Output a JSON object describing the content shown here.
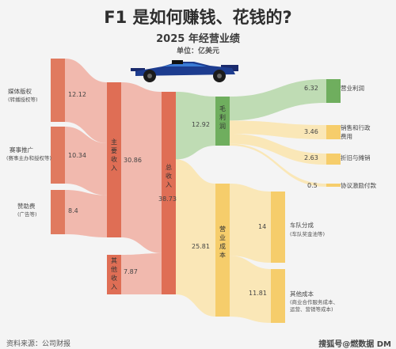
{
  "title": "F1 是如何赚钱、花钱的?",
  "subtitle": "2025 年经营业绩",
  "unit": "单位：亿美元",
  "source": "资料来源：公司财报",
  "watermark": "搜狐号@燃数据 DM",
  "chart_data": {
    "type": "sankey",
    "nodes": [
      {
        "id": "media",
        "label": "媒体版权",
        "sub": "(转播授权等)",
        "value": 12.12
      },
      {
        "id": "promo",
        "label": "赛事推广",
        "sub": "(赛事主办和授权等)",
        "value": 10.34
      },
      {
        "id": "spons",
        "label": "赞助费",
        "sub": "(广告等)",
        "value": 8.4
      },
      {
        "id": "main",
        "label": "主要收入",
        "value": 30.86
      },
      {
        "id": "other",
        "label": "其他收入",
        "value": 7.87
      },
      {
        "id": "total",
        "label": "总收入",
        "value": 38.73
      },
      {
        "id": "gross",
        "label": "毛利润",
        "value": 12.92
      },
      {
        "id": "cost",
        "label": "营业成本",
        "value": 25.81
      },
      {
        "id": "op",
        "label": "营业利润",
        "value": 6.32
      },
      {
        "id": "sga",
        "label": "销售和行政费用",
        "value": 3.46
      },
      {
        "id": "dep",
        "label": "折旧与摊销",
        "value": 2.63
      },
      {
        "id": "incent",
        "label": "协议激励付款",
        "value": 0.5
      },
      {
        "id": "team",
        "label": "车队分成",
        "sub": "(车队奖金池等)",
        "value": 14
      },
      {
        "id": "othcost",
        "label": "其他成本",
        "sub": "(商业合作服务成本、运营、营销等成本)",
        "value": 11.81
      }
    ],
    "links": [
      {
        "source": "media",
        "target": "main",
        "value": 12.12
      },
      {
        "source": "promo",
        "target": "main",
        "value": 10.34
      },
      {
        "source": "spons",
        "target": "main",
        "value": 8.4
      },
      {
        "source": "main",
        "target": "total",
        "value": 30.86
      },
      {
        "source": "other",
        "target": "total",
        "value": 7.87
      },
      {
        "source": "total",
        "target": "gross",
        "value": 12.92
      },
      {
        "source": "total",
        "target": "cost",
        "value": 25.81
      },
      {
        "source": "gross",
        "target": "op",
        "value": 6.32
      },
      {
        "source": "gross",
        "target": "sga",
        "value": 3.46
      },
      {
        "source": "gross",
        "target": "dep",
        "value": 2.63
      },
      {
        "source": "gross",
        "target": "incent",
        "value": 0.5
      },
      {
        "source": "cost",
        "target": "team",
        "value": 14
      },
      {
        "source": "cost",
        "target": "othcost",
        "value": 11.81
      }
    ],
    "colors": {
      "revenue": "#e07a5f",
      "revenue_flow": "#f1b3a6",
      "total": "#df6e55",
      "profit": "#6fae5e",
      "profit_flow": "#b9d9ad",
      "cost": "#f6cd6b",
      "cost_flow": "#fbe5b0"
    }
  }
}
